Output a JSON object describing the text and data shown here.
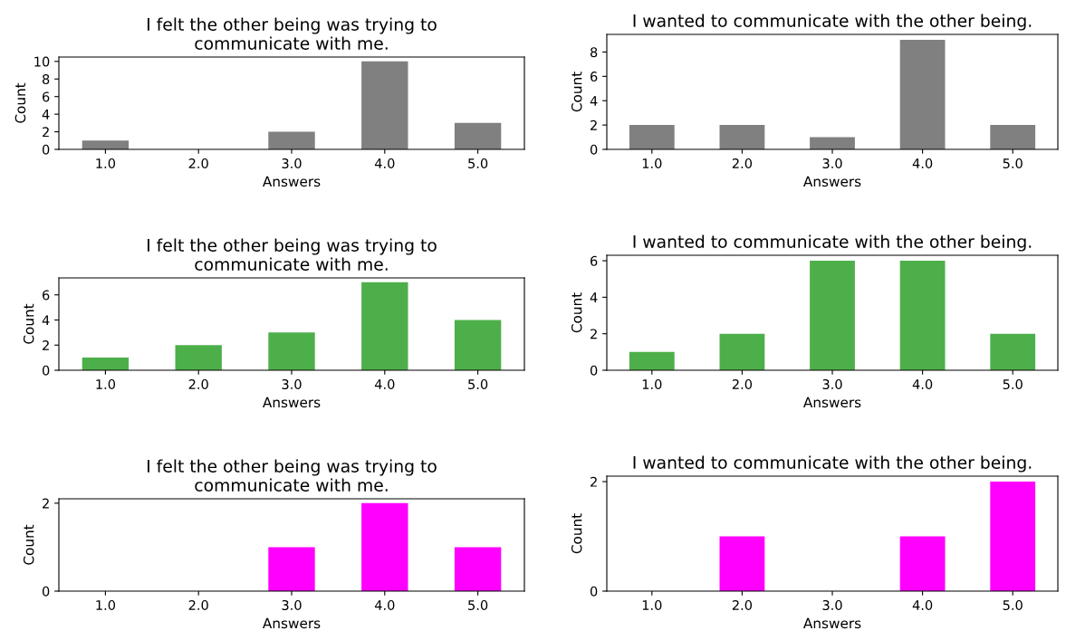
{
  "chart_data": [
    {
      "type": "bar",
      "title": "I felt the other being was trying to\ncommunicate with me.",
      "xlabel": "Answers",
      "ylabel": "Count",
      "categories": [
        "1.0",
        "2.0",
        "3.0",
        "4.0",
        "5.0"
      ],
      "values": [
        1,
        0,
        2,
        10,
        3
      ],
      "color": "#808080",
      "ylim": [
        0,
        10.5
      ],
      "yticks": [
        0,
        2,
        4,
        6,
        8,
        10
      ],
      "grid": false,
      "legend": false
    },
    {
      "type": "bar",
      "title": "I wanted to communicate with the other being.",
      "xlabel": "Answers",
      "ylabel": "Count",
      "categories": [
        "1.0",
        "2.0",
        "3.0",
        "4.0",
        "5.0"
      ],
      "values": [
        2,
        2,
        1,
        9,
        2
      ],
      "color": "#808080",
      "ylim": [
        0,
        9.45
      ],
      "yticks": [
        0,
        2,
        4,
        6,
        8
      ],
      "grid": false,
      "legend": false
    },
    {
      "type": "bar",
      "title": "I felt the other being was trying to\ncommunicate with me.",
      "xlabel": "Answers",
      "ylabel": "Count",
      "categories": [
        "1.0",
        "2.0",
        "3.0",
        "4.0",
        "5.0"
      ],
      "values": [
        1,
        2,
        3,
        7,
        4
      ],
      "color": "#4daf4a",
      "ylim": [
        0,
        7.35
      ],
      "yticks": [
        0,
        2,
        4,
        6
      ],
      "grid": false,
      "legend": false
    },
    {
      "type": "bar",
      "title": "I wanted to communicate with the other being.",
      "xlabel": "Answers",
      "ylabel": "Count",
      "categories": [
        "1.0",
        "2.0",
        "3.0",
        "4.0",
        "5.0"
      ],
      "values": [
        1,
        2,
        6,
        6,
        2
      ],
      "color": "#4daf4a",
      "ylim": [
        0,
        6.3
      ],
      "yticks": [
        0,
        2,
        4,
        6
      ],
      "grid": false,
      "legend": false
    },
    {
      "type": "bar",
      "title": "I felt the other being was trying to\ncommunicate with me.",
      "xlabel": "Answers",
      "ylabel": "Count",
      "categories": [
        "1.0",
        "2.0",
        "3.0",
        "4.0",
        "5.0"
      ],
      "values": [
        0,
        0,
        1,
        2,
        1
      ],
      "color": "#ff00ff",
      "ylim": [
        0,
        2.1
      ],
      "yticks": [
        0,
        2
      ],
      "grid": false,
      "legend": false
    },
    {
      "type": "bar",
      "title": "I wanted to communicate with the other being.",
      "xlabel": "Answers",
      "ylabel": "Count",
      "categories": [
        "1.0",
        "2.0",
        "3.0",
        "4.0",
        "5.0"
      ],
      "values": [
        0,
        1,
        0,
        1,
        2
      ],
      "color": "#ff00ff",
      "ylim": [
        0,
        2.1
      ],
      "yticks": [
        0,
        2
      ],
      "grid": false,
      "legend": false
    }
  ]
}
